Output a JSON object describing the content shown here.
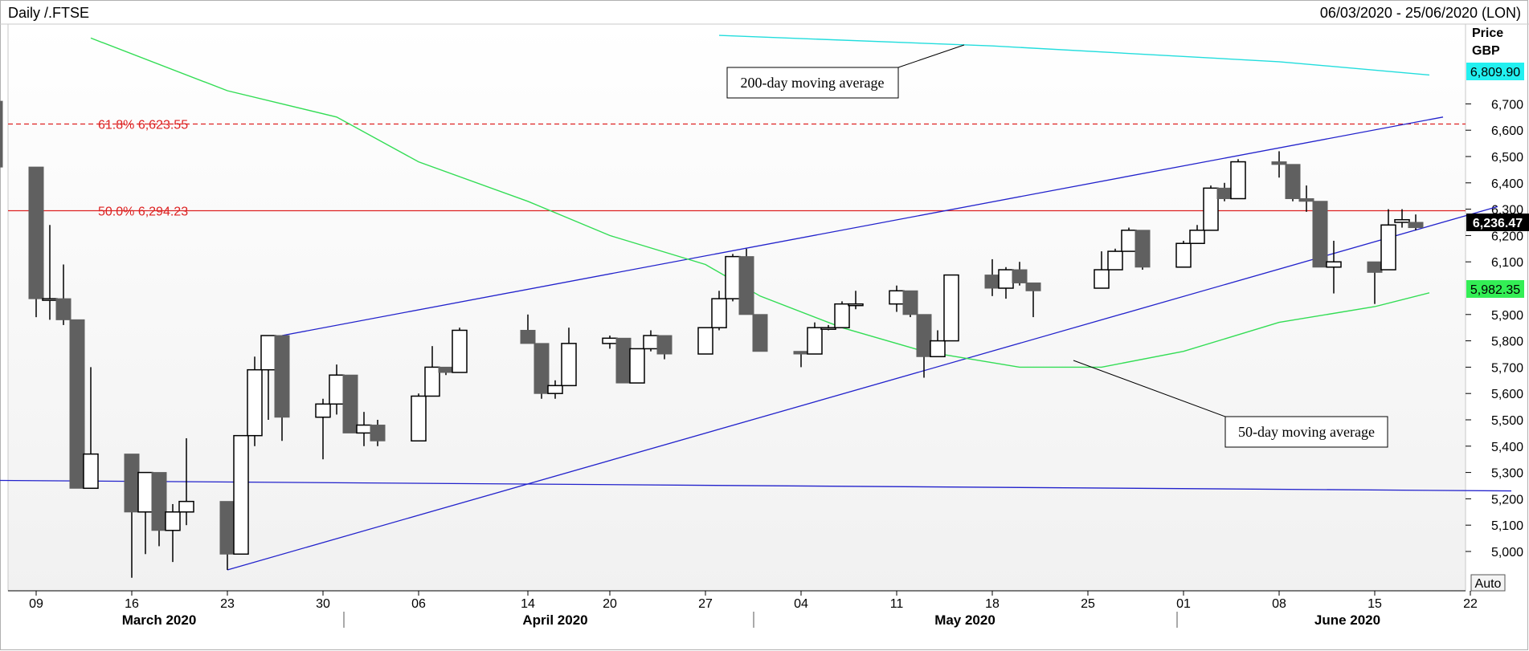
{
  "header": {
    "title": "Daily /.FTSE",
    "date_range": "06/03/2020 - 25/06/2020 (LON)"
  },
  "price_axis": {
    "label": "Price",
    "currency": "GBP",
    "ticks": [
      "6,700",
      "6,600",
      "6,500",
      "6,400",
      "6,300",
      "6,200",
      "6,100",
      "5,900",
      "5,800",
      "5,700",
      "5,600",
      "5,500",
      "5,400",
      "5,300",
      "5,200",
      "5,100",
      "5,000"
    ],
    "auto_button": "Auto"
  },
  "x_axis": {
    "day_ticks": [
      "09",
      "16",
      "23",
      "30",
      "06",
      "14",
      "20",
      "27",
      "04",
      "11",
      "18",
      "25",
      "01",
      "08",
      "15",
      "22"
    ],
    "months": [
      "March 2020",
      "April 2020",
      "May 2020",
      "June 2020"
    ]
  },
  "annotations": {
    "ma200": "200-day moving average",
    "ma50": "50-day moving average",
    "fib618": "61.8% 6,623.55",
    "fib50": "50.0% 6,294.23"
  },
  "value_tags": {
    "ma200": "6,809.90",
    "last": "6,236.47",
    "ma50": "5,982.35"
  },
  "colors": {
    "bull_fill": "#ffffff",
    "bear_fill": "#606060",
    "channel": "#2222cc",
    "ma50": "#33dd55",
    "ma200": "#22dddd",
    "fib": "#dd2222"
  },
  "chart_data": {
    "type": "candlestick",
    "title": "Daily /.FTSE",
    "ylabel": "Price GBP",
    "ylim": [
      4900,
      7000
    ],
    "candles": [
      {
        "d": "2020-03-06",
        "o": 6710,
        "h": 6710,
        "l": 6430,
        "c": 6460
      },
      {
        "d": "2020-03-09",
        "o": 6460,
        "h": 6460,
        "l": 5890,
        "c": 5960
      },
      {
        "d": "2020-03-10",
        "o": 5960,
        "h": 6240,
        "l": 5880,
        "c": 5960
      },
      {
        "d": "2020-03-11",
        "o": 5960,
        "h": 6090,
        "l": 5860,
        "c": 5880
      },
      {
        "d": "2020-03-12",
        "o": 5880,
        "h": 5880,
        "l": 5240,
        "c": 5240
      },
      {
        "d": "2020-03-13",
        "o": 5240,
        "h": 5700,
        "l": 5240,
        "c": 5370
      },
      {
        "d": "2020-03-16",
        "o": 5370,
        "h": 5370,
        "l": 4900,
        "c": 5150
      },
      {
        "d": "2020-03-17",
        "o": 5150,
        "h": 5300,
        "l": 4990,
        "c": 5300
      },
      {
        "d": "2020-03-18",
        "o": 5300,
        "h": 5300,
        "l": 5020,
        "c": 5080
      },
      {
        "d": "2020-03-19",
        "o": 5080,
        "h": 5180,
        "l": 4960,
        "c": 5150
      },
      {
        "d": "2020-03-20",
        "o": 5150,
        "h": 5430,
        "l": 5100,
        "c": 5190
      },
      {
        "d": "2020-03-23",
        "o": 5190,
        "h": 5190,
        "l": 4930,
        "c": 4990
      },
      {
        "d": "2020-03-24",
        "o": 4990,
        "h": 5440,
        "l": 4990,
        "c": 5440
      },
      {
        "d": "2020-03-25",
        "o": 5440,
        "h": 5740,
        "l": 5400,
        "c": 5690
      },
      {
        "d": "2020-03-26",
        "o": 5690,
        "h": 5820,
        "l": 5500,
        "c": 5820
      },
      {
        "d": "2020-03-27",
        "o": 5820,
        "h": 5820,
        "l": 5420,
        "c": 5510
      },
      {
        "d": "2020-03-30",
        "o": 5510,
        "h": 5580,
        "l": 5350,
        "c": 5560
      },
      {
        "d": "2020-03-31",
        "o": 5560,
        "h": 5710,
        "l": 5520,
        "c": 5670
      },
      {
        "d": "2020-04-01",
        "o": 5670,
        "h": 5670,
        "l": 5450,
        "c": 5450
      },
      {
        "d": "2020-04-02",
        "o": 5450,
        "h": 5530,
        "l": 5400,
        "c": 5480
      },
      {
        "d": "2020-04-03",
        "o": 5480,
        "h": 5500,
        "l": 5400,
        "c": 5420
      },
      {
        "d": "2020-04-06",
        "o": 5420,
        "h": 5600,
        "l": 5420,
        "c": 5590
      },
      {
        "d": "2020-04-07",
        "o": 5590,
        "h": 5780,
        "l": 5590,
        "c": 5700
      },
      {
        "d": "2020-04-08",
        "o": 5700,
        "h": 5700,
        "l": 5670,
        "c": 5680
      },
      {
        "d": "2020-04-09",
        "o": 5680,
        "h": 5850,
        "l": 5680,
        "c": 5840
      },
      {
        "d": "2020-04-14",
        "o": 5840,
        "h": 5900,
        "l": 5790,
        "c": 5790
      },
      {
        "d": "2020-04-15",
        "o": 5790,
        "h": 5790,
        "l": 5580,
        "c": 5600
      },
      {
        "d": "2020-04-16",
        "o": 5600,
        "h": 5650,
        "l": 5580,
        "c": 5630
      },
      {
        "d": "2020-04-17",
        "o": 5630,
        "h": 5850,
        "l": 5630,
        "c": 5790
      },
      {
        "d": "2020-04-20",
        "o": 5790,
        "h": 5820,
        "l": 5770,
        "c": 5810
      },
      {
        "d": "2020-04-21",
        "o": 5810,
        "h": 5810,
        "l": 5640,
        "c": 5640
      },
      {
        "d": "2020-04-22",
        "o": 5640,
        "h": 5770,
        "l": 5640,
        "c": 5770
      },
      {
        "d": "2020-04-23",
        "o": 5770,
        "h": 5840,
        "l": 5760,
        "c": 5820
      },
      {
        "d": "2020-04-24",
        "o": 5820,
        "h": 5820,
        "l": 5730,
        "c": 5750
      },
      {
        "d": "2020-04-27",
        "o": 5750,
        "h": 5850,
        "l": 5750,
        "c": 5850
      },
      {
        "d": "2020-04-28",
        "o": 5850,
        "h": 5990,
        "l": 5840,
        "c": 5960
      },
      {
        "d": "2020-04-29",
        "o": 5960,
        "h": 6130,
        "l": 5950,
        "c": 6120
      },
      {
        "d": "2020-04-30",
        "o": 6120,
        "h": 6150,
        "l": 5900,
        "c": 5900
      },
      {
        "d": "2020-05-01",
        "o": 5900,
        "h": 5900,
        "l": 5760,
        "c": 5760
      },
      {
        "d": "2020-05-04",
        "o": 5760,
        "h": 5760,
        "l": 5700,
        "c": 5750
      },
      {
        "d": "2020-05-05",
        "o": 5750,
        "h": 5870,
        "l": 5750,
        "c": 5850
      },
      {
        "d": "2020-05-06",
        "o": 5850,
        "h": 5860,
        "l": 5840,
        "c": 5850
      },
      {
        "d": "2020-05-07",
        "o": 5850,
        "h": 5950,
        "l": 5850,
        "c": 5940
      },
      {
        "d": "2020-05-08",
        "o": 5940,
        "h": 5990,
        "l": 5920,
        "c": 5940
      },
      {
        "d": "2020-05-11",
        "o": 5940,
        "h": 6010,
        "l": 5910,
        "c": 5990
      },
      {
        "d": "2020-05-12",
        "o": 5990,
        "h": 5990,
        "l": 5890,
        "c": 5900
      },
      {
        "d": "2020-05-13",
        "o": 5900,
        "h": 5900,
        "l": 5660,
        "c": 5740
      },
      {
        "d": "2020-05-14",
        "o": 5740,
        "h": 5840,
        "l": 5740,
        "c": 5800
      },
      {
        "d": "2020-05-15",
        "o": 5800,
        "h": 6050,
        "l": 5800,
        "c": 6050
      },
      {
        "d": "2020-05-18",
        "o": 6050,
        "h": 6110,
        "l": 5970,
        "c": 6000
      },
      {
        "d": "2020-05-19",
        "o": 6000,
        "h": 6080,
        "l": 5960,
        "c": 6070
      },
      {
        "d": "2020-05-20",
        "o": 6070,
        "h": 6100,
        "l": 6010,
        "c": 6020
      },
      {
        "d": "2020-05-21",
        "o": 6020,
        "h": 6020,
        "l": 5890,
        "c": 5990
      },
      {
        "d": "2020-05-26",
        "o": 6000,
        "h": 6140,
        "l": 6000,
        "c": 6070
      },
      {
        "d": "2020-05-27",
        "o": 6070,
        "h": 6150,
        "l": 6070,
        "c": 6140
      },
      {
        "d": "2020-05-28",
        "o": 6140,
        "h": 6230,
        "l": 6140,
        "c": 6220
      },
      {
        "d": "2020-05-29",
        "o": 6220,
        "h": 6220,
        "l": 6070,
        "c": 6080
      },
      {
        "d": "2020-06-01",
        "o": 6080,
        "h": 6180,
        "l": 6080,
        "c": 6170
      },
      {
        "d": "2020-06-02",
        "o": 6170,
        "h": 6240,
        "l": 6170,
        "c": 6220
      },
      {
        "d": "2020-06-03",
        "o": 6220,
        "h": 6390,
        "l": 6220,
        "c": 6380
      },
      {
        "d": "2020-06-04",
        "o": 6380,
        "h": 6400,
        "l": 6330,
        "c": 6340
      },
      {
        "d": "2020-06-05",
        "o": 6340,
        "h": 6490,
        "l": 6340,
        "c": 6480
      },
      {
        "d": "2020-06-08",
        "o": 6480,
        "h": 6520,
        "l": 6420,
        "c": 6470
      },
      {
        "d": "2020-06-09",
        "o": 6470,
        "h": 6470,
        "l": 6330,
        "c": 6340
      },
      {
        "d": "2020-06-10",
        "o": 6340,
        "h": 6390,
        "l": 6290,
        "c": 6330
      },
      {
        "d": "2020-06-11",
        "o": 6330,
        "h": 6330,
        "l": 6080,
        "c": 6080
      },
      {
        "d": "2020-06-12",
        "o": 6080,
        "h": 6180,
        "l": 5980,
        "c": 6100
      },
      {
        "d": "2020-06-15",
        "o": 6100,
        "h": 6100,
        "l": 5940,
        "c": 6060
      },
      {
        "d": "2020-06-16",
        "o": 6070,
        "h": 6300,
        "l": 6070,
        "c": 6240
      },
      {
        "d": "2020-06-17",
        "o": 6250,
        "h": 6300,
        "l": 6230,
        "c": 6260
      },
      {
        "d": "2020-06-18",
        "o": 6250,
        "h": 6280,
        "l": 6220,
        "c": 6230
      }
    ],
    "moving_average_50": [
      {
        "d": "2020-03-13",
        "v": 6950
      },
      {
        "d": "2020-03-23",
        "v": 6750
      },
      {
        "d": "2020-03-31",
        "v": 6650
      },
      {
        "d": "2020-04-06",
        "v": 6480
      },
      {
        "d": "2020-04-14",
        "v": 6330
      },
      {
        "d": "2020-04-20",
        "v": 6200
      },
      {
        "d": "2020-04-27",
        "v": 6090
      },
      {
        "d": "2020-05-01",
        "v": 5970
      },
      {
        "d": "2020-05-07",
        "v": 5850
      },
      {
        "d": "2020-05-13",
        "v": 5760
      },
      {
        "d": "2020-05-20",
        "v": 5700
      },
      {
        "d": "2020-05-26",
        "v": 5700
      },
      {
        "d": "2020-06-01",
        "v": 5760
      },
      {
        "d": "2020-06-08",
        "v": 5870
      },
      {
        "d": "2020-06-15",
        "v": 5930
      },
      {
        "d": "2020-06-19",
        "v": 5982.35
      }
    ],
    "moving_average_200": [
      {
        "d": "2020-04-28",
        "v": 6960
      },
      {
        "d": "2020-05-18",
        "v": 6920
      },
      {
        "d": "2020-06-08",
        "v": 6860
      },
      {
        "d": "2020-06-19",
        "v": 6809.9
      }
    ],
    "channel_upper": [
      {
        "d": "2020-03-27",
        "v": 5820
      },
      {
        "d": "2020-06-20",
        "v": 6650
      }
    ],
    "channel_lower": [
      {
        "d": "2020-03-23",
        "v": 4930
      },
      {
        "d": "2020-06-24",
        "v": 6310
      }
    ],
    "horizontal_line": [
      {
        "d": "2020-03-06",
        "v": 5270
      },
      {
        "d": "2020-06-25",
        "v": 5230
      }
    ],
    "fibonacci": [
      {
        "level": "61.8%",
        "v": 6623.55
      },
      {
        "level": "50.0%",
        "v": 6294.23
      }
    ]
  }
}
